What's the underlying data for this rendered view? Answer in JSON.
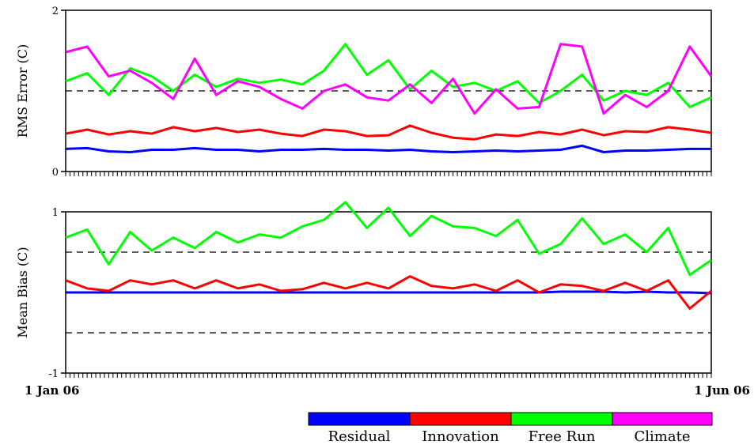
{
  "chart_data": [
    {
      "type": "line",
      "ylabel": "RMS Error (C)",
      "ylim": [
        0,
        2
      ],
      "yticks": [
        "0",
        "2"
      ],
      "reference_lines": [
        1.0
      ],
      "x_start_label": "1 Jan 06",
      "x_end_label": "1 Jun 06",
      "x": [
        0,
        5,
        10,
        15,
        20,
        25,
        30,
        35,
        40,
        45,
        50,
        55,
        60,
        65,
        70,
        75,
        80,
        85,
        90,
        95,
        100,
        105,
        110,
        115,
        120,
        125,
        130,
        135,
        140,
        145,
        150
      ],
      "series": [
        {
          "name": "Residual",
          "color": "#0000ff",
          "values": [
            0.28,
            0.29,
            0.25,
            0.24,
            0.27,
            0.27,
            0.29,
            0.27,
            0.27,
            0.25,
            0.27,
            0.27,
            0.28,
            0.27,
            0.27,
            0.26,
            0.27,
            0.25,
            0.24,
            0.25,
            0.26,
            0.25,
            0.26,
            0.27,
            0.32,
            0.24,
            0.26,
            0.26,
            0.27,
            0.28,
            0.28
          ]
        },
        {
          "name": "Innovation",
          "color": "#ff0000",
          "values": [
            0.47,
            0.52,
            0.46,
            0.5,
            0.47,
            0.55,
            0.5,
            0.54,
            0.49,
            0.52,
            0.47,
            0.44,
            0.52,
            0.5,
            0.44,
            0.45,
            0.57,
            0.48,
            0.42,
            0.4,
            0.46,
            0.44,
            0.49,
            0.46,
            0.52,
            0.45,
            0.5,
            0.49,
            0.55,
            0.52,
            0.48
          ]
        },
        {
          "name": "Free Run",
          "color": "#00ff00",
          "values": [
            1.12,
            1.22,
            0.95,
            1.28,
            1.18,
            1.0,
            1.2,
            1.05,
            1.15,
            1.1,
            1.14,
            1.08,
            1.25,
            1.58,
            1.2,
            1.38,
            1.02,
            1.25,
            1.05,
            1.1,
            1.0,
            1.12,
            0.85,
            1.0,
            1.2,
            0.88,
            1.0,
            0.95,
            1.1,
            0.8,
            0.92
          ]
        },
        {
          "name": "Climate",
          "color": "#ff00ff",
          "values": [
            1.48,
            1.55,
            1.18,
            1.25,
            1.1,
            0.9,
            1.4,
            0.95,
            1.12,
            1.05,
            0.9,
            0.78,
            1.0,
            1.08,
            0.92,
            0.88,
            1.08,
            0.85,
            1.15,
            0.72,
            1.02,
            0.78,
            0.8,
            1.58,
            1.55,
            0.72,
            0.95,
            0.8,
            1.0,
            1.55,
            1.18
          ]
        }
      ]
    },
    {
      "type": "line",
      "ylabel": "Mean Bias (C)",
      "ylim": [
        -1,
        1
      ],
      "yticks": [
        "-1",
        "1"
      ],
      "reference_lines": [
        0.5,
        -0.5
      ],
      "x_start_label": "1 Jan 06",
      "x_end_label": "1 Jun 06",
      "x": [
        0,
        5,
        10,
        15,
        20,
        25,
        30,
        35,
        40,
        45,
        50,
        55,
        60,
        65,
        70,
        75,
        80,
        85,
        90,
        95,
        100,
        105,
        110,
        115,
        120,
        125,
        130,
        135,
        140,
        145,
        150
      ],
      "series": [
        {
          "name": "Residual",
          "color": "#0000ff",
          "values": [
            0.0,
            0.0,
            0.0,
            0.0,
            0.0,
            0.0,
            0.0,
            0.0,
            0.0,
            0.0,
            0.0,
            0.0,
            0.0,
            0.0,
            0.0,
            0.0,
            0.0,
            0.0,
            0.0,
            0.0,
            0.0,
            0.0,
            0.0,
            0.01,
            0.01,
            0.01,
            0.0,
            0.01,
            0.0,
            0.0,
            -0.01
          ]
        },
        {
          "name": "Innovation",
          "color": "#ff0000",
          "values": [
            0.15,
            0.05,
            0.02,
            0.15,
            0.1,
            0.15,
            0.05,
            0.15,
            0.05,
            0.1,
            0.02,
            0.04,
            0.12,
            0.05,
            0.12,
            0.05,
            0.2,
            0.08,
            0.05,
            0.1,
            0.02,
            0.15,
            0.0,
            0.1,
            0.08,
            0.02,
            0.12,
            0.02,
            0.15,
            -0.2,
            0.02
          ]
        },
        {
          "name": "Free Run",
          "color": "#00ff00",
          "values": [
            0.68,
            0.78,
            0.35,
            0.75,
            0.52,
            0.68,
            0.55,
            0.75,
            0.62,
            0.72,
            0.68,
            0.82,
            0.9,
            1.12,
            0.8,
            1.05,
            0.7,
            0.95,
            0.82,
            0.8,
            0.7,
            0.9,
            0.48,
            0.6,
            0.92,
            0.6,
            0.72,
            0.5,
            0.8,
            0.22,
            0.4
          ]
        }
      ]
    }
  ],
  "legend": {
    "items": [
      {
        "name": "Residual",
        "color": "#0000ff"
      },
      {
        "name": "Innovation",
        "color": "#ff0000"
      },
      {
        "name": "Free Run",
        "color": "#00ff00"
      },
      {
        "name": "Climate",
        "color": "#ff00ff"
      }
    ]
  }
}
